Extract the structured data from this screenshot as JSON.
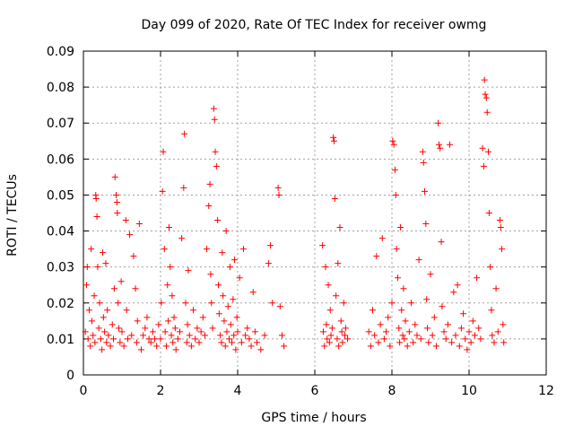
{
  "chart_data": {
    "type": "scatter",
    "title": "Day 099 of 2020, Rate Of TEC Index for receiver owmg",
    "xlabel": "GPS time / hours",
    "ylabel": "ROTI / TECUs",
    "xlim": [
      0,
      12
    ],
    "ylim": [
      0,
      0.09
    ],
    "xticks": [
      0,
      2,
      4,
      6,
      8,
      10,
      12
    ],
    "xtick_labels": [
      "0",
      "2",
      "4",
      "6",
      "8",
      "10",
      "12"
    ],
    "yticks": [
      0,
      0.01,
      0.02,
      0.03,
      0.04,
      0.05,
      0.06,
      0.07,
      0.08,
      0.09
    ],
    "ytick_labels": [
      "0",
      "0.01",
      "0.02",
      "0.03",
      "0.04",
      "0.05",
      "0.06",
      "0.07",
      "0.08",
      "0.09"
    ],
    "grid": true,
    "marker": "+",
    "series": [
      {
        "name": "ROTI",
        "color": "#ff0000",
        "points": [
          [
            0.05,
            0.012
          ],
          [
            0.08,
            0.025
          ],
          [
            0.1,
            0.03
          ],
          [
            0.12,
            0.01
          ],
          [
            0.15,
            0.018
          ],
          [
            0.18,
            0.008
          ],
          [
            0.2,
            0.035
          ],
          [
            0.22,
            0.015
          ],
          [
            0.25,
            0.011
          ],
          [
            0.28,
            0.022
          ],
          [
            0.3,
            0.009
          ],
          [
            0.32,
            0.05
          ],
          [
            0.33,
            0.049
          ],
          [
            0.35,
            0.044
          ],
          [
            0.37,
            0.03
          ],
          [
            0.4,
            0.013
          ],
          [
            0.42,
            0.02
          ],
          [
            0.45,
            0.01
          ],
          [
            0.48,
            0.007
          ],
          [
            0.5,
            0.034
          ],
          [
            0.52,
            0.016
          ],
          [
            0.55,
            0.012
          ],
          [
            0.58,
            0.031
          ],
          [
            0.6,
            0.009
          ],
          [
            0.62,
            0.018
          ],
          [
            0.65,
            0.011
          ],
          [
            0.7,
            0.008
          ],
          [
            0.75,
            0.014
          ],
          [
            0.78,
            0.01
          ],
          [
            0.8,
            0.024
          ],
          [
            0.82,
            0.055
          ],
          [
            0.85,
            0.05
          ],
          [
            0.87,
            0.048
          ],
          [
            0.88,
            0.045
          ],
          [
            0.9,
            0.02
          ],
          [
            0.92,
            0.013
          ],
          [
            0.95,
            0.009
          ],
          [
            0.98,
            0.026
          ],
          [
            1.0,
            0.012
          ],
          [
            1.05,
            0.008
          ],
          [
            1.1,
            0.043
          ],
          [
            1.12,
            0.018
          ],
          [
            1.15,
            0.01
          ],
          [
            1.2,
            0.039
          ],
          [
            1.25,
            0.011
          ],
          [
            1.3,
            0.033
          ],
          [
            1.35,
            0.024
          ],
          [
            1.38,
            0.009
          ],
          [
            1.4,
            0.015
          ],
          [
            1.45,
            0.042
          ],
          [
            1.5,
            0.007
          ],
          [
            1.55,
            0.011
          ],
          [
            1.6,
            0.013
          ],
          [
            1.65,
            0.016
          ],
          [
            1.7,
            0.01
          ],
          [
            1.75,
            0.009
          ],
          [
            1.8,
            0.012
          ],
          [
            1.85,
            0.01
          ],
          [
            1.9,
            0.008
          ],
          [
            1.95,
            0.014
          ],
          [
            2.0,
            0.01
          ],
          [
            2.02,
            0.02
          ],
          [
            2.05,
            0.051
          ],
          [
            2.07,
            0.062
          ],
          [
            2.1,
            0.035
          ],
          [
            2.12,
            0.012
          ],
          [
            2.15,
            0.008
          ],
          [
            2.18,
            0.025
          ],
          [
            2.2,
            0.015
          ],
          [
            2.22,
            0.041
          ],
          [
            2.25,
            0.03
          ],
          [
            2.28,
            0.011
          ],
          [
            2.3,
            0.022
          ],
          [
            2.32,
            0.009
          ],
          [
            2.35,
            0.016
          ],
          [
            2.38,
            0.013
          ],
          [
            2.4,
            0.007
          ],
          [
            2.45,
            0.01
          ],
          [
            2.5,
            0.012
          ],
          [
            2.55,
            0.038
          ],
          [
            2.6,
            0.052
          ],
          [
            2.62,
            0.067
          ],
          [
            2.65,
            0.02
          ],
          [
            2.68,
            0.009
          ],
          [
            2.7,
            0.014
          ],
          [
            2.72,
            0.029
          ],
          [
            2.75,
            0.011
          ],
          [
            2.8,
            0.008
          ],
          [
            2.85,
            0.018
          ],
          [
            2.9,
            0.01
          ],
          [
            2.95,
            0.013
          ],
          [
            3.0,
            0.009
          ],
          [
            3.05,
            0.012
          ],
          [
            3.1,
            0.016
          ],
          [
            3.15,
            0.011
          ],
          [
            3.2,
            0.035
          ],
          [
            3.25,
            0.047
          ],
          [
            3.28,
            0.053
          ],
          [
            3.3,
            0.028
          ],
          [
            3.32,
            0.02
          ],
          [
            3.35,
            0.013
          ],
          [
            3.38,
            0.074
          ],
          [
            3.4,
            0.071
          ],
          [
            3.42,
            0.062
          ],
          [
            3.45,
            0.058
          ],
          [
            3.48,
            0.043
          ],
          [
            3.5,
            0.025
          ],
          [
            3.52,
            0.017
          ],
          [
            3.55,
            0.011
          ],
          [
            3.58,
            0.009
          ],
          [
            3.6,
            0.034
          ],
          [
            3.62,
            0.022
          ],
          [
            3.65,
            0.015
          ],
          [
            3.68,
            0.008
          ],
          [
            3.7,
            0.04
          ],
          [
            3.72,
            0.012
          ],
          [
            3.75,
            0.019
          ],
          [
            3.78,
            0.01
          ],
          [
            3.8,
            0.03
          ],
          [
            3.82,
            0.014
          ],
          [
            3.85,
            0.009
          ],
          [
            3.88,
            0.021
          ],
          [
            3.9,
            0.011
          ],
          [
            3.92,
            0.032
          ],
          [
            3.95,
            0.007
          ],
          [
            3.98,
            0.016
          ],
          [
            4.0,
            0.012
          ],
          [
            4.05,
            0.027
          ],
          [
            4.1,
            0.009
          ],
          [
            4.15,
            0.035
          ],
          [
            4.2,
            0.011
          ],
          [
            4.25,
            0.013
          ],
          [
            4.3,
            0.01
          ],
          [
            4.35,
            0.008
          ],
          [
            4.4,
            0.023
          ],
          [
            4.45,
            0.012
          ],
          [
            4.5,
            0.009
          ],
          [
            4.6,
            0.007
          ],
          [
            4.7,
            0.011
          ],
          [
            4.8,
            0.031
          ],
          [
            4.85,
            0.036
          ],
          [
            4.9,
            0.02
          ],
          [
            5.05,
            0.052
          ],
          [
            5.07,
            0.05
          ],
          [
            5.1,
            0.019
          ],
          [
            5.15,
            0.011
          ],
          [
            5.2,
            0.008
          ],
          [
            6.2,
            0.036
          ],
          [
            6.22,
            0.012
          ],
          [
            6.25,
            0.008
          ],
          [
            6.28,
            0.03
          ],
          [
            6.3,
            0.014
          ],
          [
            6.32,
            0.01
          ],
          [
            6.35,
            0.025
          ],
          [
            6.38,
            0.009
          ],
          [
            6.4,
            0.018
          ],
          [
            6.42,
            0.011
          ],
          [
            6.45,
            0.013
          ],
          [
            6.48,
            0.066
          ],
          [
            6.5,
            0.065
          ],
          [
            6.52,
            0.049
          ],
          [
            6.55,
            0.022
          ],
          [
            6.58,
            0.01
          ],
          [
            6.6,
            0.031
          ],
          [
            6.62,
            0.008
          ],
          [
            6.65,
            0.041
          ],
          [
            6.68,
            0.015
          ],
          [
            6.7,
            0.012
          ],
          [
            6.72,
            0.009
          ],
          [
            6.75,
            0.02
          ],
          [
            6.78,
            0.011
          ],
          [
            6.8,
            0.013
          ],
          [
            6.85,
            0.01
          ],
          [
            7.4,
            0.012
          ],
          [
            7.45,
            0.008
          ],
          [
            7.5,
            0.018
          ],
          [
            7.55,
            0.011
          ],
          [
            7.6,
            0.033
          ],
          [
            7.65,
            0.009
          ],
          [
            7.7,
            0.014
          ],
          [
            7.75,
            0.038
          ],
          [
            7.8,
            0.01
          ],
          [
            7.85,
            0.012
          ],
          [
            7.9,
            0.016
          ],
          [
            7.95,
            0.008
          ],
          [
            8.0,
            0.02
          ],
          [
            8.02,
            0.065
          ],
          [
            8.05,
            0.064
          ],
          [
            8.08,
            0.057
          ],
          [
            8.1,
            0.05
          ],
          [
            8.12,
            0.035
          ],
          [
            8.15,
            0.027
          ],
          [
            8.18,
            0.013
          ],
          [
            8.2,
            0.009
          ],
          [
            8.22,
            0.041
          ],
          [
            8.25,
            0.018
          ],
          [
            8.28,
            0.011
          ],
          [
            8.3,
            0.024
          ],
          [
            8.32,
            0.01
          ],
          [
            8.35,
            0.015
          ],
          [
            8.4,
            0.008
          ],
          [
            8.45,
            0.012
          ],
          [
            8.5,
            0.02
          ],
          [
            8.55,
            0.009
          ],
          [
            8.6,
            0.014
          ],
          [
            8.65,
            0.011
          ],
          [
            8.7,
            0.032
          ],
          [
            8.75,
            0.01
          ],
          [
            8.8,
            0.062
          ],
          [
            8.82,
            0.059
          ],
          [
            8.85,
            0.051
          ],
          [
            8.88,
            0.042
          ],
          [
            8.9,
            0.021
          ],
          [
            8.92,
            0.013
          ],
          [
            8.95,
            0.009
          ],
          [
            9.0,
            0.028
          ],
          [
            9.05,
            0.011
          ],
          [
            9.1,
            0.016
          ],
          [
            9.15,
            0.008
          ],
          [
            9.2,
            0.07
          ],
          [
            9.22,
            0.064
          ],
          [
            9.25,
            0.063
          ],
          [
            9.28,
            0.037
          ],
          [
            9.3,
            0.019
          ],
          [
            9.35,
            0.012
          ],
          [
            9.4,
            0.01
          ],
          [
            9.45,
            0.014
          ],
          [
            9.5,
            0.064
          ],
          [
            9.55,
            0.009
          ],
          [
            9.6,
            0.023
          ],
          [
            9.65,
            0.011
          ],
          [
            9.7,
            0.025
          ],
          [
            9.75,
            0.008
          ],
          [
            9.8,
            0.013
          ],
          [
            9.85,
            0.017
          ],
          [
            9.9,
            0.01
          ],
          [
            9.95,
            0.007
          ],
          [
            10.0,
            0.012
          ],
          [
            10.05,
            0.009
          ],
          [
            10.1,
            0.015
          ],
          [
            10.15,
            0.011
          ],
          [
            10.2,
            0.027
          ],
          [
            10.25,
            0.013
          ],
          [
            10.3,
            0.01
          ],
          [
            10.35,
            0.063
          ],
          [
            10.38,
            0.058
          ],
          [
            10.4,
            0.082
          ],
          [
            10.42,
            0.078
          ],
          [
            10.45,
            0.077
          ],
          [
            10.47,
            0.073
          ],
          [
            10.5,
            0.062
          ],
          [
            10.52,
            0.045
          ],
          [
            10.55,
            0.03
          ],
          [
            10.58,
            0.018
          ],
          [
            10.6,
            0.011
          ],
          [
            10.65,
            0.009
          ],
          [
            10.7,
            0.024
          ],
          [
            10.75,
            0.012
          ],
          [
            10.8,
            0.043
          ],
          [
            10.82,
            0.041
          ],
          [
            10.85,
            0.035
          ],
          [
            10.88,
            0.014
          ],
          [
            10.9,
            0.009
          ]
        ]
      }
    ]
  }
}
